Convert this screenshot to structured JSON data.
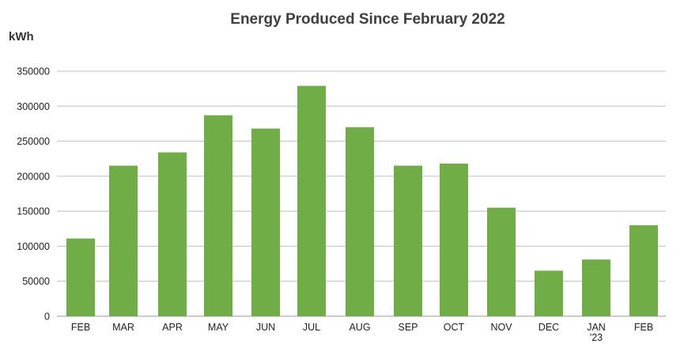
{
  "chart_data": {
    "type": "bar",
    "title": "Energy Produced Since February 2022",
    "ylabel": "kWh",
    "xlabel": "",
    "categories": [
      "FEB",
      "MAR",
      "APR",
      "MAY",
      "JUN",
      "JUL",
      "AUG",
      "SEP",
      "OCT",
      "NOV",
      "DEC",
      "JAN\n'23",
      "FEB"
    ],
    "values": [
      111000,
      215000,
      234000,
      287000,
      268000,
      329000,
      270000,
      215000,
      218000,
      155000,
      65000,
      81000,
      130000
    ],
    "ylim": [
      0,
      350000
    ],
    "yticks": [
      0,
      50000,
      100000,
      150000,
      200000,
      250000,
      300000,
      350000
    ],
    "grid": true,
    "legend": "none",
    "colors": {
      "bar": "#70ad47",
      "grid": "#bfbfbf",
      "axis": "#999999"
    }
  }
}
